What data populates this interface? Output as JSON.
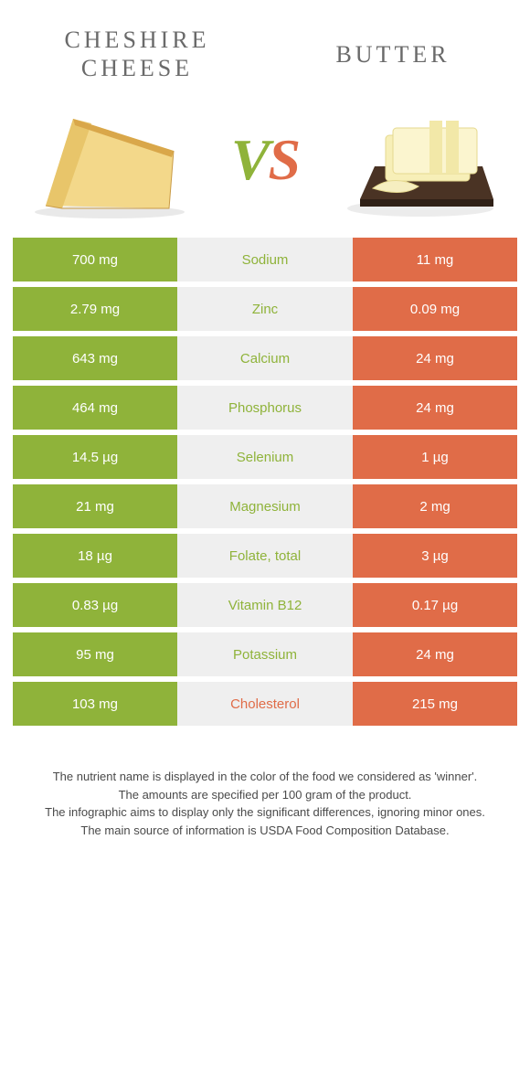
{
  "colors": {
    "green": "#8fb33a",
    "orange": "#e06c48",
    "mid_bg": "#efefef",
    "title_gray": "#6a6a6a"
  },
  "header": {
    "left_title_line1": "CHESHIRE",
    "left_title_line2": "CHEESE",
    "right_title": "BUTTER",
    "vs_v": "V",
    "vs_s": "S"
  },
  "rows": [
    {
      "nutrient": "Sodium",
      "left": "700 mg",
      "right": "11 mg",
      "winner": "left"
    },
    {
      "nutrient": "Zinc",
      "left": "2.79 mg",
      "right": "0.09 mg",
      "winner": "left"
    },
    {
      "nutrient": "Calcium",
      "left": "643 mg",
      "right": "24 mg",
      "winner": "left"
    },
    {
      "nutrient": "Phosphorus",
      "left": "464 mg",
      "right": "24 mg",
      "winner": "left"
    },
    {
      "nutrient": "Selenium",
      "left": "14.5 µg",
      "right": "1 µg",
      "winner": "left"
    },
    {
      "nutrient": "Magnesium",
      "left": "21 mg",
      "right": "2 mg",
      "winner": "left"
    },
    {
      "nutrient": "Folate, total",
      "left": "18 µg",
      "right": "3 µg",
      "winner": "left"
    },
    {
      "nutrient": "Vitamin B12",
      "left": "0.83 µg",
      "right": "0.17 µg",
      "winner": "left"
    },
    {
      "nutrient": "Potassium",
      "left": "95 mg",
      "right": "24 mg",
      "winner": "left"
    },
    {
      "nutrient": "Cholesterol",
      "left": "103 mg",
      "right": "215 mg",
      "winner": "right"
    }
  ],
  "footer": {
    "line1": "The nutrient name is displayed in the color of the food we considered as 'winner'.",
    "line2": "The amounts are specified per 100 gram of the product.",
    "line3": "The infographic aims to display only the significant differences, ignoring minor ones.",
    "line4": "The main source of information is USDA Food Composition Database."
  }
}
